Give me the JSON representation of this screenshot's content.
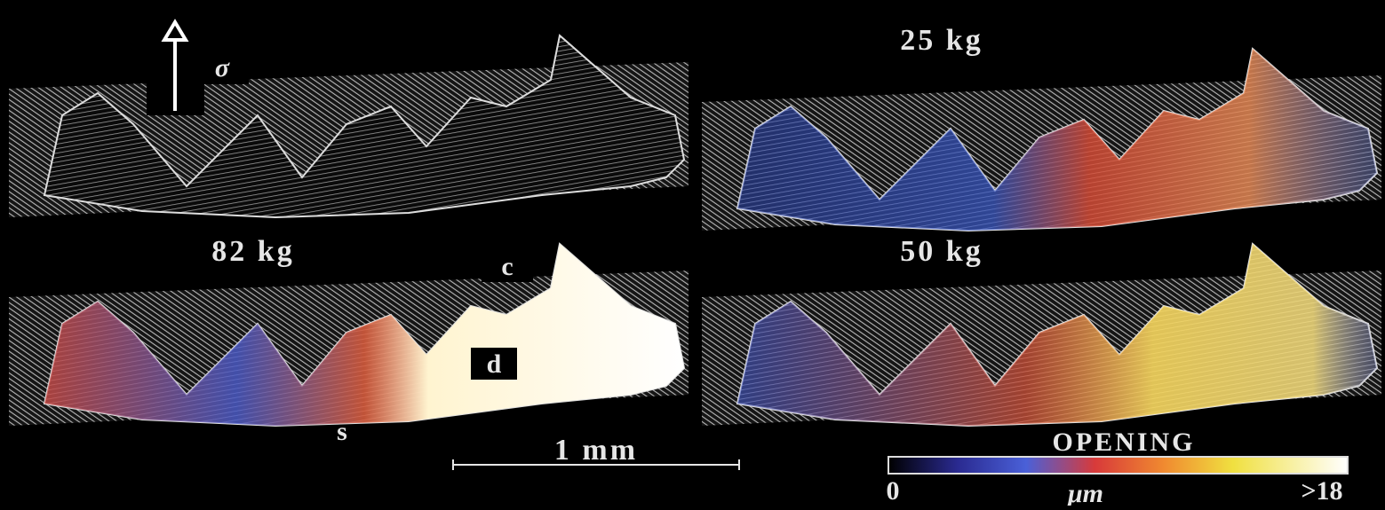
{
  "figure": {
    "stress_label": "σ",
    "panels": [
      {
        "label": "25 kg"
      },
      {
        "label": "82 kg"
      },
      {
        "label": "50 kg"
      }
    ],
    "markers": [
      "c",
      "d",
      "s"
    ],
    "scale_bar": "1 mm",
    "colorbar": {
      "title": "OPENING",
      "min_label": "0",
      "unit": "μm",
      "max_label": ">18"
    }
  }
}
